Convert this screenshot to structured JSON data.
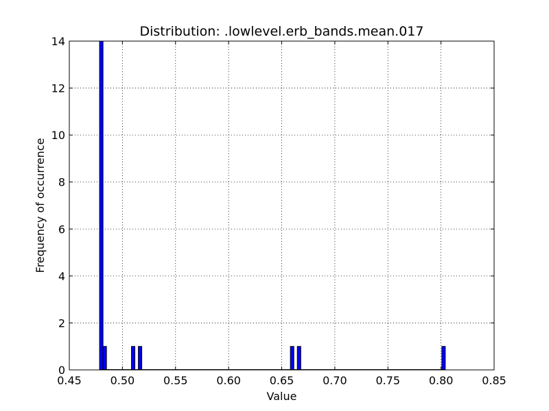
{
  "chart_data": {
    "type": "bar",
    "title": "Distribution: .lowlevel.erb_bands.mean.017",
    "xlabel": "Value",
    "ylabel": "Frequency of occurrence",
    "xlim": [
      0.45,
      0.85
    ],
    "ylim": [
      0,
      14
    ],
    "xticks": [
      "0.45",
      "0.50",
      "0.55",
      "0.60",
      "0.65",
      "0.70",
      "0.75",
      "0.80",
      "0.85"
    ],
    "yticks": [
      "0",
      "2",
      "4",
      "6",
      "8",
      "10",
      "12",
      "14"
    ],
    "grid": true,
    "bin_width": 0.00325,
    "bins": [
      {
        "x": 0.4785,
        "count": 14
      },
      {
        "x": 0.48175,
        "count": 1
      },
      {
        "x": 0.5085,
        "count": 1
      },
      {
        "x": 0.515,
        "count": 1
      },
      {
        "x": 0.6582,
        "count": 1
      },
      {
        "x": 0.6647,
        "count": 1
      },
      {
        "x": 0.8008,
        "count": 1
      }
    ]
  }
}
